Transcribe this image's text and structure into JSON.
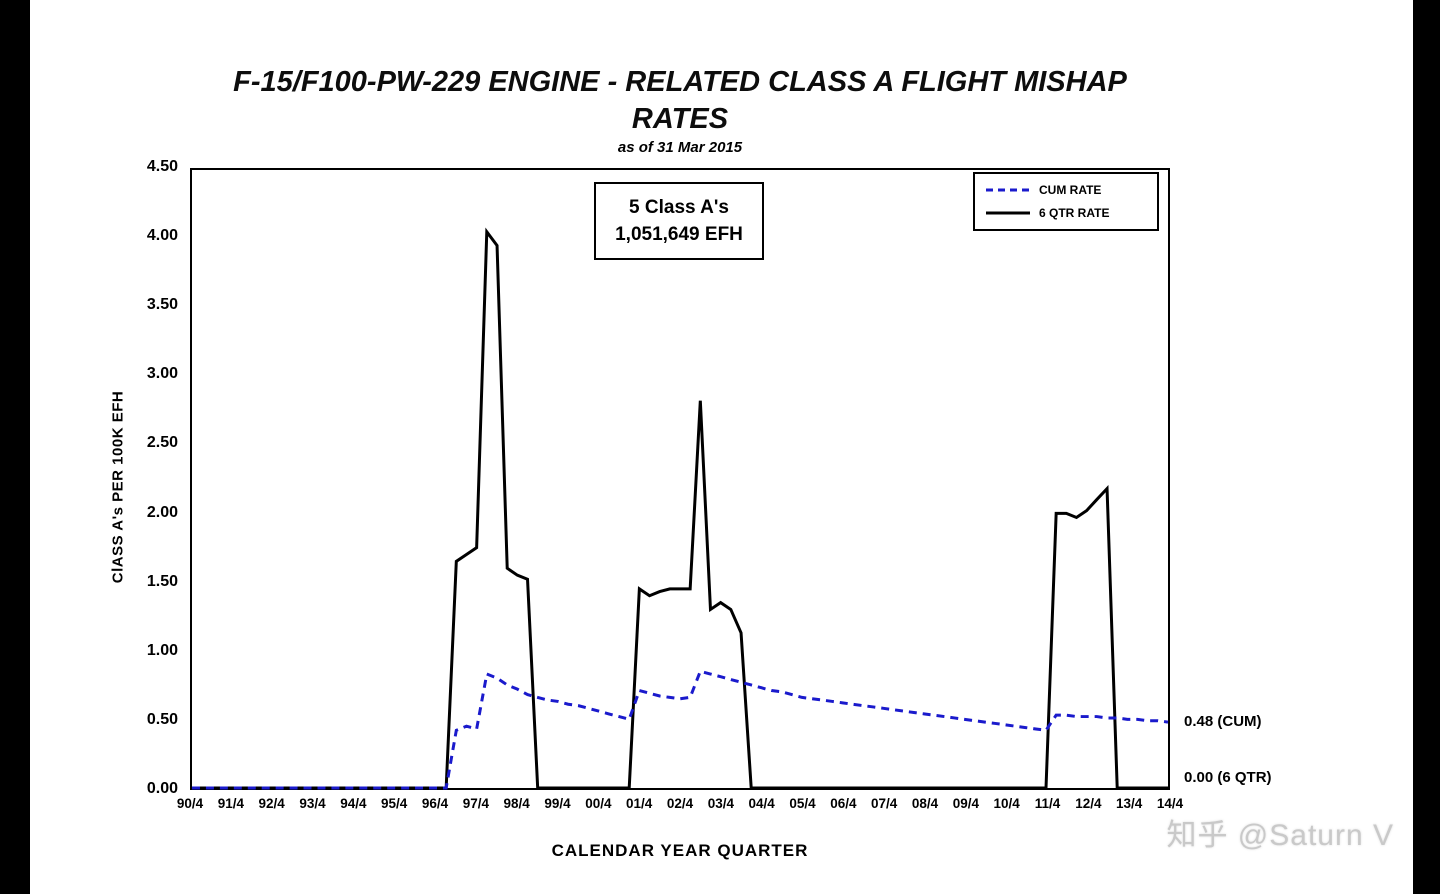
{
  "page": {
    "watermark": "知乎 @Saturn V"
  },
  "chart_data": {
    "type": "line",
    "title_line1": "F-15/F100-PW-229 ENGINE - RELATED CLASS A FLIGHT MISHAP",
    "title_line2": "RATES",
    "subtitle": "as of 31 Mar 2015",
    "xlabel": "CALENDAR YEAR QUARTER",
    "ylabel": "ClASS A's PER 100K EFH",
    "ylim": [
      0,
      4.5
    ],
    "ytick_step": 0.5,
    "yticks": [
      "4.50",
      "4.00",
      "3.50",
      "3.00",
      "2.50",
      "2.00",
      "1.50",
      "1.00",
      "0.50",
      "0.00"
    ],
    "xticks": [
      "90/4",
      "91/4",
      "92/4",
      "93/4",
      "94/4",
      "95/4",
      "96/4",
      "97/4",
      "98/4",
      "99/4",
      "00/4",
      "01/4",
      "02/4",
      "03/4",
      "04/4",
      "05/4",
      "06/4",
      "07/4",
      "08/4",
      "09/4",
      "10/4",
      "11/4",
      "12/4",
      "13/4",
      "14/4"
    ],
    "x_note": "series values are quarterly from 1990 Q4 to 2014 Q4 (97 points)",
    "grid": "off",
    "legend_position": "top-right",
    "annotation": {
      "line1": "5 Class A's",
      "line2": "1,051,649 EFH"
    },
    "legend": [
      {
        "label": "CUM RATE",
        "color": "#1a1acc",
        "dash": true
      },
      {
        "label": "6 QTR RATE",
        "color": "#000000",
        "dash": false
      }
    ],
    "end_labels": [
      {
        "text": "0.48 (CUM)"
      },
      {
        "text": "0.00 (6 QTR)"
      }
    ],
    "series": [
      {
        "name": "CUM RATE",
        "values": [
          0,
          0,
          0,
          0,
          0,
          0,
          0,
          0,
          0,
          0,
          0,
          0,
          0,
          0,
          0,
          0,
          0,
          0,
          0,
          0,
          0,
          0,
          0,
          0,
          0,
          0,
          0.42,
          0.45,
          0.43,
          0.83,
          0.8,
          0.75,
          0.72,
          0.68,
          0.66,
          0.64,
          0.63,
          0.61,
          0.6,
          0.58,
          0.56,
          0.54,
          0.52,
          0.5,
          0.71,
          0.69,
          0.67,
          0.66,
          0.65,
          0.66,
          0.85,
          0.83,
          0.81,
          0.79,
          0.77,
          0.75,
          0.73,
          0.71,
          0.7,
          0.68,
          0.66,
          0.65,
          0.64,
          0.63,
          0.62,
          0.61,
          0.6,
          0.59,
          0.58,
          0.57,
          0.56,
          0.55,
          0.54,
          0.53,
          0.52,
          0.51,
          0.5,
          0.49,
          0.48,
          0.47,
          0.46,
          0.45,
          0.44,
          0.43,
          0.42,
          0.53,
          0.53,
          0.52,
          0.52,
          0.52,
          0.51,
          0.51,
          0.5,
          0.5,
          0.49,
          0.49,
          0.48
        ]
      },
      {
        "name": "6 QTR RATE",
        "values": [
          0,
          0,
          0,
          0,
          0,
          0,
          0,
          0,
          0,
          0,
          0,
          0,
          0,
          0,
          0,
          0,
          0,
          0,
          0,
          0,
          0,
          0,
          0,
          0,
          0,
          0,
          1.65,
          1.7,
          1.75,
          4.05,
          3.95,
          1.6,
          1.55,
          1.52,
          0,
          0,
          0,
          0,
          0,
          0,
          0,
          0,
          0,
          0,
          1.45,
          1.4,
          1.43,
          1.45,
          1.45,
          1.45,
          2.82,
          1.3,
          1.35,
          1.3,
          1.13,
          0,
          0,
          0,
          0,
          0,
          0,
          0,
          0,
          0,
          0,
          0,
          0,
          0,
          0,
          0,
          0,
          0,
          0,
          0,
          0,
          0,
          0,
          0,
          0,
          0,
          0,
          0,
          0,
          0,
          0,
          2.0,
          2.0,
          1.97,
          2.02,
          2.1,
          2.18,
          0,
          0,
          0,
          0,
          0,
          0
        ]
      }
    ]
  }
}
